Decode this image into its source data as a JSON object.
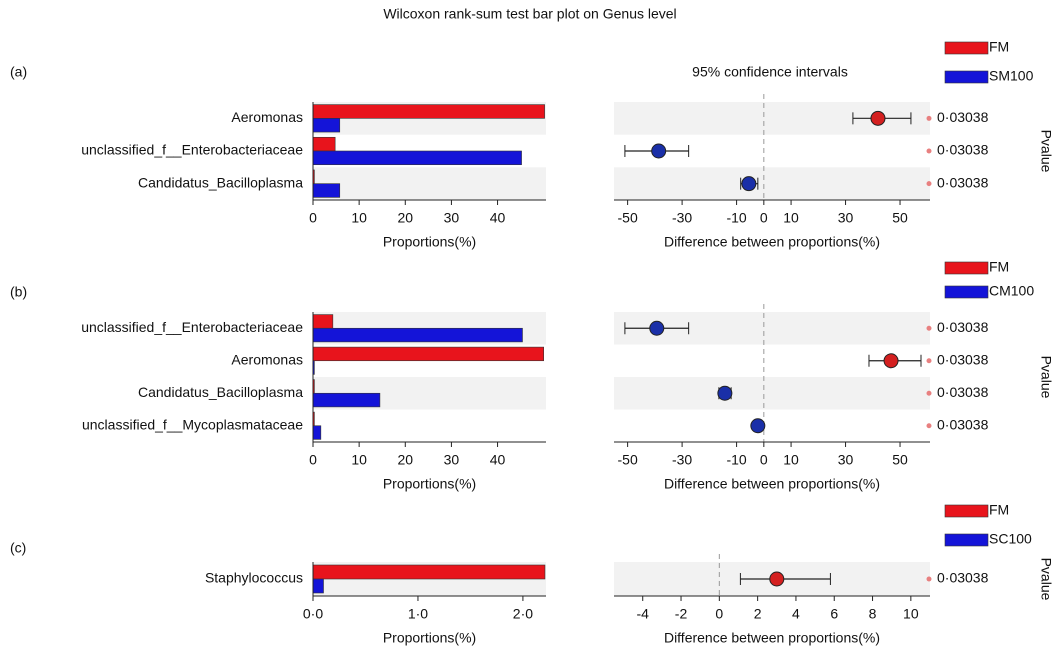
{
  "title": "Wilcoxon rank-sum test bar plot on Genus level",
  "chart_data": [
    {
      "type": "bar",
      "panel_label": "(a)",
      "categories": [
        "Aeromonas",
        "unclassified_f__Enterobacteriaceae",
        "Candidatus_Bacilloplasma"
      ],
      "series": [
        {
          "name": "FM",
          "color": "#e8141c",
          "values": [
            50.2,
            4.8,
            0.3
          ]
        },
        {
          "name": "SM100",
          "color": "#1414d8",
          "values": [
            5.8,
            45.2,
            5.8
          ]
        }
      ],
      "xlim": [
        0,
        50.5
      ],
      "xticks": [
        0,
        10,
        20,
        30,
        40
      ],
      "xlabel": "Proportions(%)"
    },
    {
      "type": "ci",
      "title": "95% confidence intervals",
      "values": [
        41.9,
        -38.6,
        -5.5
      ],
      "lower": [
        32.7,
        -51,
        -8.5
      ],
      "upper": [
        54,
        -27.6,
        -2.2
      ],
      "point_colors": [
        "#d42020",
        "#1a2fa8",
        "#1a2fa8"
      ],
      "pvalues": [
        0.03038,
        0.03038,
        0.03038
      ],
      "pvalue_labels": [
        "0·03038",
        "0·03038",
        "0·03038"
      ],
      "pvalue_title": "Pvalue",
      "xlim": [
        -55,
        61
      ],
      "xticks": [
        -50,
        -30,
        -10,
        0,
        10,
        30,
        50
      ],
      "xlabel": "Difference between proportions(%)"
    },
    {
      "type": "bar",
      "panel_label": "(b)",
      "categories": [
        "unclassified_f__Enterobacteriaceae",
        "Aeromonas",
        "Candidatus_Bacilloplasma",
        "unclassified_f__Mycoplasmataceae"
      ],
      "series": [
        {
          "name": "FM",
          "color": "#e8141c",
          "values": [
            4.3,
            50,
            0.3,
            0.3
          ]
        },
        {
          "name": "CM100",
          "color": "#1414d8",
          "values": [
            45.4,
            0.3,
            14.5,
            1.7
          ]
        }
      ],
      "xlim": [
        0,
        50.5
      ],
      "xticks": [
        0,
        10,
        20,
        30,
        40
      ],
      "xlabel": "Proportions(%)"
    },
    {
      "type": "ci",
      "values": [
        -39.3,
        46.7,
        -14.3,
        -2.2
      ],
      "lower": [
        -51,
        38.6,
        -16.5,
        -3.3
      ],
      "upper": [
        -27.6,
        57.7,
        -12,
        -1.1
      ],
      "point_colors": [
        "#1a2fa8",
        "#d42020",
        "#1a2fa8",
        "#1a2fa8"
      ],
      "pvalues": [
        0.03038,
        0.03038,
        0.03038,
        0.03038
      ],
      "pvalue_labels": [
        "0·03038",
        "0·03038",
        "0·03038",
        "0·03038"
      ],
      "pvalue_title": "Pvalue",
      "xlim": [
        -55,
        61
      ],
      "xticks": [
        -50,
        -30,
        -10,
        0,
        10,
        30,
        50
      ],
      "xlabel": "Difference between proportions(%)"
    },
    {
      "type": "bar",
      "panel_label": "(c)",
      "categories": [
        "Staphylococcus"
      ],
      "series": [
        {
          "name": "FM",
          "color": "#e8141c",
          "values": [
            2.21
          ]
        },
        {
          "name": "SC100",
          "color": "#1414d8",
          "values": [
            0.1
          ]
        }
      ],
      "xlim": [
        0,
        2.22
      ],
      "xticks": [
        {
          "value": 0,
          "label": "0·0"
        },
        {
          "value": 1,
          "label": "1·0"
        },
        {
          "value": 2,
          "label": "2·0"
        }
      ],
      "xlabel": "Proportions(%)"
    },
    {
      "type": "ci",
      "values": [
        3.0
      ],
      "lower": [
        1.1
      ],
      "upper": [
        5.8
      ],
      "point_colors": [
        "#d42020"
      ],
      "pvalues": [
        0.03038
      ],
      "pvalue_labels": [
        "0·03038"
      ],
      "pvalue_title": "Pvalue",
      "xlim": [
        -5.5,
        11
      ],
      "xticks": [
        -4,
        -2,
        0,
        2,
        4,
        6,
        8,
        10
      ],
      "xlabel": "Difference between proportions(%)"
    }
  ]
}
